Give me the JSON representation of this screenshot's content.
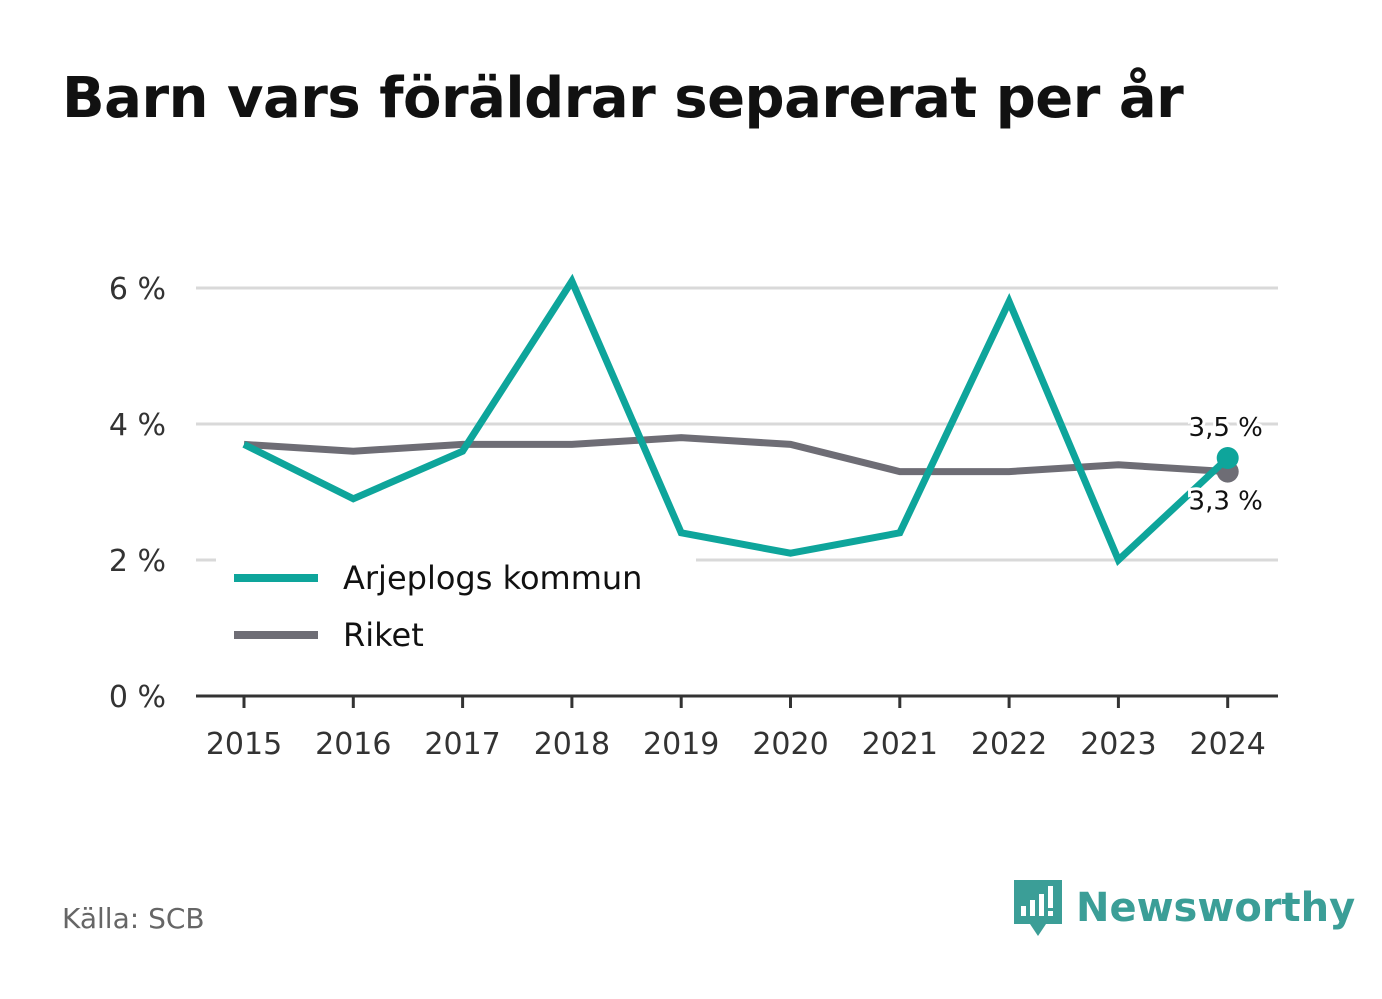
{
  "title": "Barn vars föräldrar separerat per år",
  "source": "Källa: SCB",
  "brand": {
    "name": "Newsworthy",
    "icon": "newsworthy-logo-icon",
    "color": "#3b9e97"
  },
  "chart_data": {
    "type": "line",
    "x": [
      "2015",
      "2016",
      "2017",
      "2018",
      "2019",
      "2020",
      "2021",
      "2022",
      "2023",
      "2024"
    ],
    "ylim": [
      0,
      6.3
    ],
    "yticks": [
      0,
      2,
      4,
      6
    ],
    "ytick_labels": [
      "0 %",
      "2 %",
      "4 %",
      "6 %"
    ],
    "grid": true,
    "legend_position": "bottom-left",
    "series": [
      {
        "name": "Arjeplogs kommun",
        "color": "#0ea59b",
        "values": [
          3.7,
          2.9,
          3.6,
          6.1,
          2.4,
          2.1,
          2.4,
          5.8,
          2.0,
          3.5
        ],
        "end_label": "3,5 %"
      },
      {
        "name": "Riket",
        "color": "#6e6d75",
        "values": [
          3.7,
          3.6,
          3.7,
          3.7,
          3.8,
          3.7,
          3.3,
          3.3,
          3.4,
          3.3
        ],
        "end_label": "3,3 %"
      }
    ]
  }
}
